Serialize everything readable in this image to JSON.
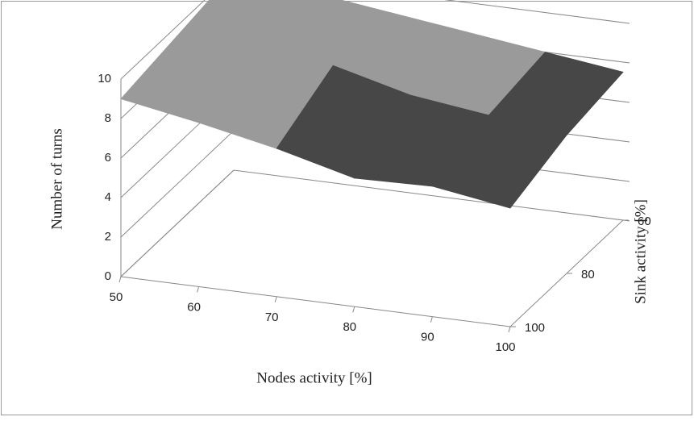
{
  "chart_data": {
    "type": "surface",
    "y_label": "Number of turns",
    "x_label": "Nodes activity [%]",
    "z_label": "Sink activity [%]",
    "categories": [
      "50",
      "60",
      "70",
      "80",
      "90",
      "100"
    ],
    "series": [
      {
        "name": "60",
        "values": [
          10,
          9.5,
          9,
          8.5,
          8,
          7.5
        ]
      },
      {
        "name": "80",
        "values": [
          9.5,
          10,
          9,
          8,
          7.5,
          7
        ]
      },
      {
        "name": "100",
        "values": [
          9,
          8.3,
          7.5,
          6.5,
          6.6,
          6
        ]
      }
    ],
    "ylim": [
      0,
      10
    ],
    "yticks": [
      0,
      2,
      4,
      6,
      8,
      10
    ],
    "grid": true,
    "band_colors": [
      "#3a3a3a",
      "#3a3a3a",
      "#3a3a3a",
      "#474747",
      "#9a9a9a"
    ]
  }
}
